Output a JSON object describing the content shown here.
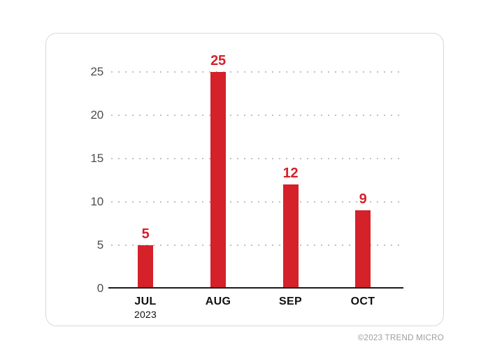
{
  "chart_data": {
    "type": "bar",
    "title": "",
    "categories": [
      "JUL",
      "AUG",
      "SEP",
      "OCT"
    ],
    "values": [
      5,
      25,
      12,
      9
    ],
    "x_sub_labels": [
      "2023",
      "",
      "",
      ""
    ],
    "xlabel": "",
    "ylabel": "",
    "yticks": [
      0,
      5,
      10,
      15,
      20,
      25
    ],
    "ylim": [
      0,
      25
    ],
    "grid": "dotted-horizontal",
    "legend_position": "none",
    "bar_color": "#d4212a",
    "value_label_color": "#d4212a",
    "axis_line_color": "#1a1a1a",
    "y_tick_color": "#4c4c4c",
    "x_label_color": "#111111",
    "gridline_color": "#bdbdbd"
  },
  "footer": {
    "copyright": "©2023 TREND MICRO"
  }
}
